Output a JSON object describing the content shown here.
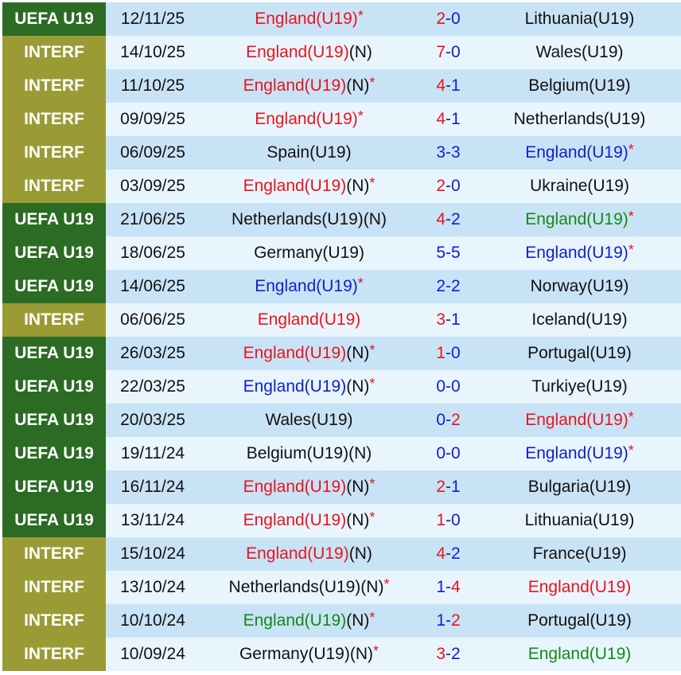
{
  "colors": {
    "UEFA U19": "#2b6b23",
    "INTERF": "#9b9b35",
    "red": "#e8141c",
    "blue": "#1020d0",
    "green": "#138a13",
    "black": "#111111",
    "winner_score": "#e8141c",
    "other_score": "#1020d0"
  },
  "neutral_mark": "(N)",
  "star_mark": "*",
  "matches": [
    {
      "comp": "UEFA U19",
      "date": "12/11/25",
      "home": {
        "name": "England(U19)",
        "color": "red",
        "neutral": false,
        "star": true
      },
      "hs": "2",
      "as": "0",
      "away": {
        "name": "Lithuania(U19)",
        "color": "black",
        "neutral": false,
        "star": false
      }
    },
    {
      "comp": "INTERF",
      "date": "14/10/25",
      "home": {
        "name": "England(U19)",
        "color": "red",
        "neutral": true,
        "star": false
      },
      "hs": "7",
      "as": "0",
      "away": {
        "name": "Wales(U19)",
        "color": "black",
        "neutral": false,
        "star": false
      }
    },
    {
      "comp": "INTERF",
      "date": "11/10/25",
      "home": {
        "name": "England(U19)",
        "color": "red",
        "neutral": true,
        "star": true
      },
      "hs": "4",
      "as": "1",
      "away": {
        "name": "Belgium(U19)",
        "color": "black",
        "neutral": false,
        "star": false
      }
    },
    {
      "comp": "INTERF",
      "date": "09/09/25",
      "home": {
        "name": "England(U19)",
        "color": "red",
        "neutral": false,
        "star": true
      },
      "hs": "4",
      "as": "1",
      "away": {
        "name": "Netherlands(U19)",
        "color": "black",
        "neutral": false,
        "star": false
      }
    },
    {
      "comp": "INTERF",
      "date": "06/09/25",
      "home": {
        "name": "Spain(U19)",
        "color": "black",
        "neutral": false,
        "star": false
      },
      "hs": "3",
      "as": "3",
      "away": {
        "name": "England(U19)",
        "color": "blue",
        "neutral": false,
        "star": true
      }
    },
    {
      "comp": "INTERF",
      "date": "03/09/25",
      "home": {
        "name": "England(U19)",
        "color": "red",
        "neutral": true,
        "star": true
      },
      "hs": "2",
      "as": "0",
      "away": {
        "name": "Ukraine(U19)",
        "color": "black",
        "neutral": false,
        "star": false
      }
    },
    {
      "comp": "UEFA U19",
      "date": "21/06/25",
      "home": {
        "name": "Netherlands(U19)",
        "color": "black",
        "neutral": true,
        "star": false
      },
      "hs": "4",
      "as": "2",
      "away": {
        "name": "England(U19)",
        "color": "green",
        "neutral": false,
        "star": true
      }
    },
    {
      "comp": "UEFA U19",
      "date": "18/06/25",
      "home": {
        "name": "Germany(U19)",
        "color": "black",
        "neutral": false,
        "star": false
      },
      "hs": "5",
      "as": "5",
      "away": {
        "name": "England(U19)",
        "color": "blue",
        "neutral": false,
        "star": true
      }
    },
    {
      "comp": "UEFA U19",
      "date": "14/06/25",
      "home": {
        "name": "England(U19)",
        "color": "blue",
        "neutral": false,
        "star": true
      },
      "hs": "2",
      "as": "2",
      "away": {
        "name": "Norway(U19)",
        "color": "black",
        "neutral": false,
        "star": false
      }
    },
    {
      "comp": "INTERF",
      "date": "06/06/25",
      "home": {
        "name": "England(U19)",
        "color": "red",
        "neutral": false,
        "star": false
      },
      "hs": "3",
      "as": "1",
      "away": {
        "name": "Iceland(U19)",
        "color": "black",
        "neutral": false,
        "star": false
      }
    },
    {
      "comp": "UEFA U19",
      "date": "26/03/25",
      "home": {
        "name": "England(U19)",
        "color": "red",
        "neutral": true,
        "star": true
      },
      "hs": "1",
      "as": "0",
      "away": {
        "name": "Portugal(U19)",
        "color": "black",
        "neutral": false,
        "star": false
      }
    },
    {
      "comp": "UEFA U19",
      "date": "22/03/25",
      "home": {
        "name": "England(U19)",
        "color": "blue",
        "neutral": true,
        "star": true
      },
      "hs": "0",
      "as": "0",
      "away": {
        "name": "Turkiye(U19)",
        "color": "black",
        "neutral": false,
        "star": false
      }
    },
    {
      "comp": "UEFA U19",
      "date": "20/03/25",
      "home": {
        "name": "Wales(U19)",
        "color": "black",
        "neutral": false,
        "star": false
      },
      "hs": "0",
      "as": "2",
      "away": {
        "name": "England(U19)",
        "color": "red",
        "neutral": false,
        "star": true
      }
    },
    {
      "comp": "UEFA U19",
      "date": "19/11/24",
      "home": {
        "name": "Belgium(U19)",
        "color": "black",
        "neutral": true,
        "star": false
      },
      "hs": "0",
      "as": "0",
      "away": {
        "name": "England(U19)",
        "color": "blue",
        "neutral": false,
        "star": true
      }
    },
    {
      "comp": "UEFA U19",
      "date": "16/11/24",
      "home": {
        "name": "England(U19)",
        "color": "red",
        "neutral": true,
        "star": true
      },
      "hs": "2",
      "as": "1",
      "away": {
        "name": "Bulgaria(U19)",
        "color": "black",
        "neutral": false,
        "star": false
      }
    },
    {
      "comp": "UEFA U19",
      "date": "13/11/24",
      "home": {
        "name": "England(U19)",
        "color": "red",
        "neutral": true,
        "star": true
      },
      "hs": "1",
      "as": "0",
      "away": {
        "name": "Lithuania(U19)",
        "color": "black",
        "neutral": false,
        "star": false
      }
    },
    {
      "comp": "INTERF",
      "date": "15/10/24",
      "home": {
        "name": "England(U19)",
        "color": "red",
        "neutral": true,
        "star": false
      },
      "hs": "4",
      "as": "2",
      "away": {
        "name": "France(U19)",
        "color": "black",
        "neutral": false,
        "star": false
      }
    },
    {
      "comp": "INTERF",
      "date": "13/10/24",
      "home": {
        "name": "Netherlands(U19)",
        "color": "black",
        "neutral": true,
        "star": true
      },
      "hs": "1",
      "as": "4",
      "away": {
        "name": "England(U19)",
        "color": "red",
        "neutral": false,
        "star": false
      }
    },
    {
      "comp": "INTERF",
      "date": "10/10/24",
      "home": {
        "name": "England(U19)",
        "color": "green",
        "neutral": true,
        "star": true
      },
      "hs": "1",
      "as": "2",
      "away": {
        "name": "Portugal(U19)",
        "color": "black",
        "neutral": false,
        "star": false
      }
    },
    {
      "comp": "INTERF",
      "date": "10/09/24",
      "home": {
        "name": "Germany(U19)",
        "color": "black",
        "neutral": true,
        "star": true
      },
      "hs": "3",
      "as": "2",
      "away": {
        "name": "England(U19)",
        "color": "green",
        "neutral": false,
        "star": false
      }
    }
  ]
}
